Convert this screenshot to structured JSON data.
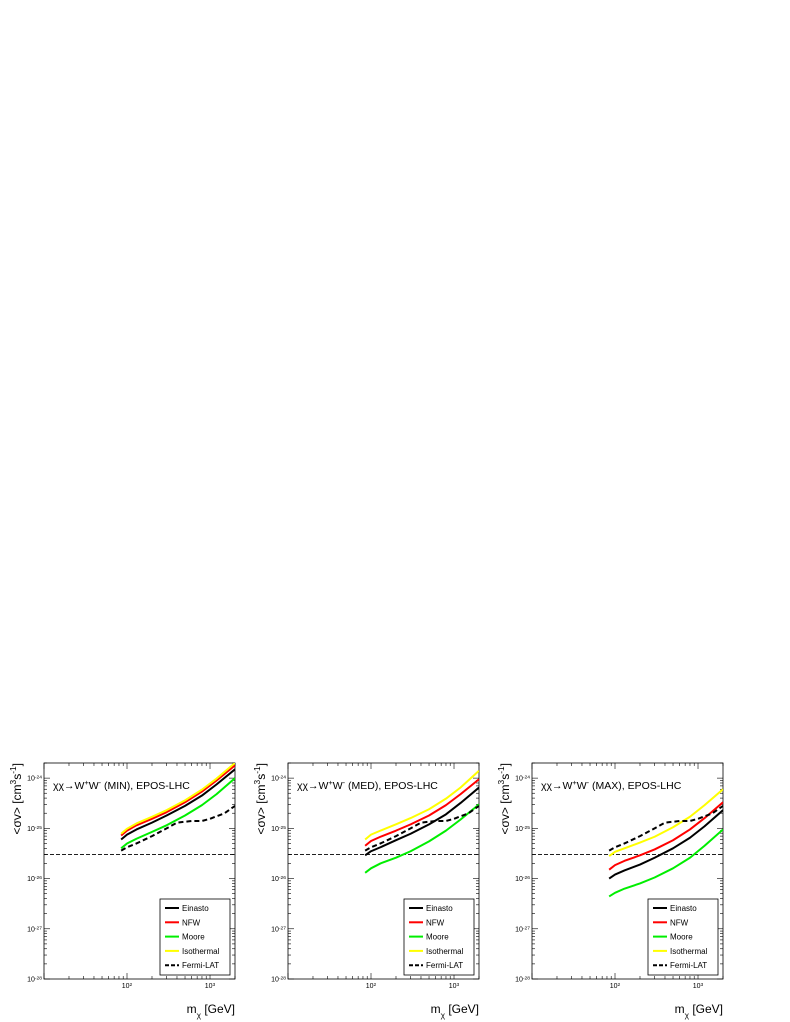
{
  "chart_data": [
    {
      "type": "line",
      "panel": "MIN",
      "title": "χχ→W⁺W⁻ (MIN), EPOS-LHC",
      "xlabel": "m_χ [GeV]",
      "ylabel": "<σv> [cm³s⁻¹]",
      "xscale": "log",
      "yscale": "log",
      "xlim": [
        10,
        2000
      ],
      "ylim": [
        1e-28,
        2e-24
      ],
      "x_ticks": [
        "10^2",
        "10^3"
      ],
      "y_ticks": [
        "10^-28",
        "10^-27",
        "10^-26",
        "10^-25",
        "10^-24"
      ],
      "reference_line": {
        "y": 3e-26,
        "style": "dashed"
      },
      "legend": {
        "placement": "bottom-right",
        "entries": [
          "Einasto",
          "NFW",
          "Moore",
          "Isothermal",
          "Fermi-LAT"
        ]
      },
      "series": [
        {
          "name": "Einasto",
          "color": "#000000",
          "style": "solid",
          "x": [
            85,
            100,
            130,
            200,
            300,
            500,
            800,
            1200,
            2000
          ],
          "y": [
            6e-26,
            7.5e-26,
            9.5e-26,
            1.3e-25,
            1.8e-25,
            2.8e-25,
            4.5e-25,
            7.5e-25,
            1.5e-24
          ]
        },
        {
          "name": "NFW",
          "color": "#ff0000",
          "style": "solid",
          "x": [
            85,
            100,
            130,
            200,
            300,
            500,
            800,
            1200,
            2000
          ],
          "y": [
            7.2e-26,
            9e-26,
            1.15e-25,
            1.55e-25,
            2.1e-25,
            3.3e-25,
            5.4e-25,
            9e-25,
            1.8e-24
          ]
        },
        {
          "name": "Moore",
          "color": "#00ee00",
          "style": "solid",
          "x": [
            85,
            100,
            130,
            200,
            300,
            500,
            800,
            1200,
            2000
          ],
          "y": [
            4e-26,
            5e-26,
            6.2e-26,
            8.5e-26,
            1.15e-25,
            1.8e-25,
            2.9e-25,
            4.8e-25,
            1e-24
          ]
        },
        {
          "name": "Isothermal",
          "color": "#ffff00",
          "style": "solid",
          "x": [
            85,
            100,
            130,
            200,
            300,
            500,
            800,
            1200,
            2000
          ],
          "y": [
            7.8e-26,
            9.8e-26,
            1.25e-25,
            1.7e-25,
            2.3e-25,
            3.6e-25,
            5.9e-25,
            9.8e-25,
            2e-24
          ]
        },
        {
          "name": "Fermi-LAT",
          "color": "#000000",
          "style": "dashed",
          "x": [
            85,
            100,
            130,
            200,
            300,
            400,
            600,
            800,
            1000,
            1500,
            2000
          ],
          "y": [
            3.6e-26,
            4.2e-26,
            5e-26,
            7e-26,
            1e-25,
            1.3e-25,
            1.4e-25,
            1.4e-25,
            1.55e-25,
            2e-25,
            2.8e-25
          ]
        }
      ]
    },
    {
      "type": "line",
      "panel": "MED",
      "title": "χχ→W⁺W⁻ (MED), EPOS-LHC",
      "xlabel": "m_χ [GeV]",
      "ylabel": "<σv> [cm³s⁻¹]",
      "xscale": "log",
      "yscale": "log",
      "xlim": [
        10,
        2000
      ],
      "ylim": [
        1e-28,
        2e-24
      ],
      "x_ticks": [
        "10^2",
        "10^3"
      ],
      "y_ticks": [
        "10^-28",
        "10^-27",
        "10^-26",
        "10^-25",
        "10^-24"
      ],
      "reference_line": {
        "y": 3e-26,
        "style": "dashed"
      },
      "legend": {
        "placement": "bottom-right",
        "entries": [
          "Einasto",
          "NFW",
          "Moore",
          "Isothermal",
          "Fermi-LAT"
        ]
      },
      "series": [
        {
          "name": "Einasto",
          "color": "#000000",
          "style": "solid",
          "x": [
            85,
            100,
            130,
            200,
            300,
            500,
            800,
            1200,
            2000
          ],
          "y": [
            2.9e-26,
            3.5e-26,
            4.2e-26,
            5.8e-26,
            7.8e-26,
            1.2e-25,
            1.9e-25,
            3.2e-25,
            6.5e-25
          ]
        },
        {
          "name": "NFW",
          "color": "#ff0000",
          "style": "solid",
          "x": [
            85,
            100,
            130,
            200,
            300,
            500,
            800,
            1200,
            2000
          ],
          "y": [
            4.5e-26,
            5.6e-26,
            6.8e-26,
            9e-26,
            1.2e-25,
            1.8e-25,
            2.9e-25,
            4.8e-25,
            9.5e-25
          ]
        },
        {
          "name": "Moore",
          "color": "#00ee00",
          "style": "solid",
          "x": [
            85,
            100,
            130,
            200,
            300,
            500,
            800,
            1200,
            2000
          ],
          "y": [
            1.3e-26,
            1.6e-26,
            2e-26,
            2.6e-26,
            3.5e-26,
            5.5e-26,
            9e-26,
            1.5e-25,
            3e-25
          ]
        },
        {
          "name": "Isothermal",
          "color": "#ffff00",
          "style": "solid",
          "x": [
            85,
            100,
            130,
            200,
            300,
            500,
            800,
            1200,
            2000
          ],
          "y": [
            6e-26,
            7.5e-26,
            9e-26,
            1.2e-25,
            1.6e-25,
            2.4e-25,
            3.9e-25,
            6.5e-25,
            1.4e-24
          ]
        },
        {
          "name": "Fermi-LAT",
          "color": "#000000",
          "style": "dashed",
          "x": [
            85,
            100,
            130,
            200,
            300,
            400,
            600,
            800,
            1000,
            1500,
            2000
          ],
          "y": [
            3.6e-26,
            4.2e-26,
            5e-26,
            7e-26,
            1e-25,
            1.3e-25,
            1.4e-25,
            1.4e-25,
            1.55e-25,
            2e-25,
            2.8e-25
          ]
        }
      ]
    },
    {
      "type": "line",
      "panel": "MAX",
      "title": "χχ→W⁺W⁻ (MAX), EPOS-LHC",
      "xlabel": "m_χ [GeV]",
      "ylabel": "<σv> [cm³s⁻¹]",
      "xscale": "log",
      "yscale": "log",
      "xlim": [
        10,
        2000
      ],
      "ylim": [
        1e-28,
        2e-24
      ],
      "x_ticks": [
        "10^2",
        "10^3"
      ],
      "y_ticks": [
        "10^-28",
        "10^-27",
        "10^-26",
        "10^-25",
        "10^-24"
      ],
      "reference_line": {
        "y": 3e-26,
        "style": "dashed"
      },
      "legend": {
        "placement": "bottom-right",
        "entries": [
          "Einasto",
          "NFW",
          "Moore",
          "Isothermal",
          "Fermi-LAT"
        ]
      },
      "series": [
        {
          "name": "Einasto",
          "color": "#000000",
          "style": "solid",
          "x": [
            85,
            100,
            130,
            200,
            300,
            500,
            800,
            1200,
            2000
          ],
          "y": [
            1e-26,
            1.2e-26,
            1.45e-26,
            1.9e-26,
            2.6e-26,
            4e-26,
            6.5e-26,
            1.1e-25,
            2.3e-25
          ]
        },
        {
          "name": "NFW",
          "color": "#ff0000",
          "style": "solid",
          "x": [
            85,
            100,
            130,
            200,
            300,
            500,
            800,
            1200,
            2000
          ],
          "y": [
            1.5e-26,
            1.85e-26,
            2.25e-26,
            2.9e-26,
            3.8e-26,
            5.8e-26,
            9.5e-26,
            1.6e-25,
            3.3e-25
          ]
        },
        {
          "name": "Moore",
          "color": "#00ee00",
          "style": "solid",
          "x": [
            85,
            100,
            130,
            200,
            300,
            500,
            800,
            1200,
            2000
          ],
          "y": [
            4.4e-27,
            5.2e-27,
            6.3e-27,
            8e-27,
            1.05e-26,
            1.6e-26,
            2.6e-26,
            4.5e-26,
            9.5e-26
          ]
        },
        {
          "name": "Isothermal",
          "color": "#ffff00",
          "style": "solid",
          "x": [
            85,
            100,
            130,
            200,
            300,
            500,
            800,
            1200,
            2000
          ],
          "y": [
            2.8e-26,
            3.4e-26,
            4e-26,
            5.2e-26,
            6.8e-26,
            1.05e-25,
            1.7e-25,
            2.9e-25,
            6e-25
          ]
        },
        {
          "name": "Fermi-LAT",
          "color": "#000000",
          "style": "dashed",
          "x": [
            85,
            100,
            130,
            200,
            300,
            400,
            600,
            800,
            1000,
            1500,
            2000
          ],
          "y": [
            3.6e-26,
            4.2e-26,
            5e-26,
            7e-26,
            1e-25,
            1.3e-25,
            1.4e-25,
            1.4e-25,
            1.55e-25,
            2e-25,
            2.8e-25
          ]
        }
      ]
    }
  ]
}
